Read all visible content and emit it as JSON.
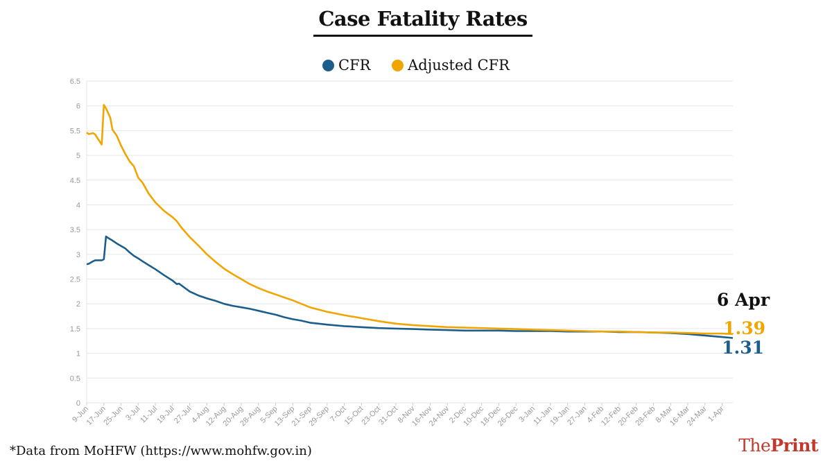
{
  "title": "Case Fatality Rates",
  "footnote": "*Data from MoHFW (https://www.mohfw.gov.in)",
  "brand": {
    "part1": "The",
    "part2": "Print"
  },
  "colors": {
    "cfr": "#1b5e8c",
    "adjusted": "#f0a500",
    "grid": "#e6e6e6",
    "axis_text": "#999999",
    "brand": "#c0392b"
  },
  "chart_data": {
    "type": "line",
    "title": "Case Fatality Rates",
    "xlabel": "",
    "ylabel": "",
    "ylim": [
      0,
      6.5
    ],
    "yticks": [
      0,
      0.5,
      1,
      1.5,
      2,
      2.5,
      3,
      3.5,
      4,
      4.5,
      5,
      5.5,
      6,
      6.5
    ],
    "yticks_labels": [
      "0",
      "0.5",
      "1",
      "1.5",
      "2",
      "2.5",
      "3",
      "3.5",
      "4",
      "4.5",
      "5",
      "5.5",
      "6",
      "6.5"
    ],
    "x_start": "9-Jun",
    "x_end": "6-Apr",
    "xticks": [
      "9-Jun",
      "17-Jun",
      "25-Jun",
      "3-Jul",
      "11-Jul",
      "19-Jul",
      "27-Jul",
      "4-Aug",
      "12-Aug",
      "20-Aug",
      "28-Aug",
      "5-Sep",
      "13-Sep",
      "21-Sep",
      "29-Sep",
      "7-Oct",
      "15-Oct",
      "23-Oct",
      "31-Oct",
      "8-Nov",
      "16-Nov",
      "24-Nov",
      "2-Dec",
      "10-Dec",
      "18-Dec",
      "26-Dec",
      "3-Jan",
      "11-Jan",
      "19-Jan",
      "27-Jan",
      "4-Feb",
      "12-Feb",
      "20-Feb",
      "28-Feb",
      "8-Mar",
      "16-Mar",
      "24-Mar",
      "1-Apr"
    ],
    "grid": true,
    "legend_position": "top-center",
    "end_label_date": "6 Apr",
    "series": [
      {
        "name": "CFR",
        "end_label": "1.31",
        "points": [
          [
            "9-Jun",
            2.8
          ],
          [
            "10-Jun",
            2.81
          ],
          [
            "12-Jun",
            2.86
          ],
          [
            "13-Jun",
            2.88
          ],
          [
            "16-Jun",
            2.88
          ],
          [
            "17-Jun",
            2.9
          ],
          [
            "18-Jun",
            3.36
          ],
          [
            "19-Jun",
            3.33
          ],
          [
            "21-Jun",
            3.28
          ],
          [
            "23-Jun",
            3.22
          ],
          [
            "25-Jun",
            3.17
          ],
          [
            "27-Jun",
            3.12
          ],
          [
            "29-Jun",
            3.04
          ],
          [
            "1-Jul",
            2.97
          ],
          [
            "3-Jul",
            2.92
          ],
          [
            "5-Jul",
            2.86
          ],
          [
            "8-Jul",
            2.78
          ],
          [
            "11-Jul",
            2.7
          ],
          [
            "15-Jul",
            2.58
          ],
          [
            "19-Jul",
            2.47
          ],
          [
            "21-Jul",
            2.4
          ],
          [
            "22-Jul",
            2.41
          ],
          [
            "27-Jul",
            2.25
          ],
          [
            "31-Jul",
            2.17
          ],
          [
            "4-Aug",
            2.11
          ],
          [
            "8-Aug",
            2.06
          ],
          [
            "12-Aug",
            2.0
          ],
          [
            "16-Aug",
            1.96
          ],
          [
            "20-Aug",
            1.93
          ],
          [
            "24-Aug",
            1.9
          ],
          [
            "28-Aug",
            1.86
          ],
          [
            "1-Sep",
            1.82
          ],
          [
            "5-Sep",
            1.78
          ],
          [
            "9-Sep",
            1.73
          ],
          [
            "13-Sep",
            1.69
          ],
          [
            "17-Sep",
            1.66
          ],
          [
            "21-Sep",
            1.62
          ],
          [
            "29-Sep",
            1.58
          ],
          [
            "7-Oct",
            1.55
          ],
          [
            "15-Oct",
            1.53
          ],
          [
            "23-Oct",
            1.51
          ],
          [
            "31-Oct",
            1.5
          ],
          [
            "8-Nov",
            1.49
          ],
          [
            "16-Nov",
            1.48
          ],
          [
            "24-Nov",
            1.47
          ],
          [
            "2-Dec",
            1.46
          ],
          [
            "10-Dec",
            1.46
          ],
          [
            "18-Dec",
            1.46
          ],
          [
            "26-Dec",
            1.45
          ],
          [
            "3-Jan",
            1.45
          ],
          [
            "11-Jan",
            1.45
          ],
          [
            "19-Jan",
            1.44
          ],
          [
            "27-Jan",
            1.44
          ],
          [
            "4-Feb",
            1.44
          ],
          [
            "12-Feb",
            1.43
          ],
          [
            "20-Feb",
            1.43
          ],
          [
            "28-Feb",
            1.42
          ],
          [
            "8-Mar",
            1.41
          ],
          [
            "16-Mar",
            1.39
          ],
          [
            "24-Mar",
            1.36
          ],
          [
            "1-Apr",
            1.33
          ],
          [
            "6-Apr",
            1.31
          ]
        ]
      },
      {
        "name": "Adjusted CFR",
        "end_label": "1.39",
        "points": [
          [
            "9-Jun",
            5.46
          ],
          [
            "10-Jun",
            5.43
          ],
          [
            "12-Jun",
            5.45
          ],
          [
            "13-Jun",
            5.42
          ],
          [
            "14-Jun",
            5.35
          ],
          [
            "16-Jun",
            5.22
          ],
          [
            "17-Jun",
            6.02
          ],
          [
            "18-Jun",
            5.95
          ],
          [
            "20-Jun",
            5.76
          ],
          [
            "21-Jun",
            5.52
          ],
          [
            "23-Jun",
            5.4
          ],
          [
            "25-Jun",
            5.2
          ],
          [
            "27-Jun",
            5.03
          ],
          [
            "29-Jun",
            4.88
          ],
          [
            "1-Jul",
            4.78
          ],
          [
            "3-Jul",
            4.55
          ],
          [
            "5-Jul",
            4.45
          ],
          [
            "8-Jul",
            4.22
          ],
          [
            "11-Jul",
            4.05
          ],
          [
            "15-Jul",
            3.88
          ],
          [
            "19-Jul",
            3.75
          ],
          [
            "21-Jul",
            3.67
          ],
          [
            "23-Jul",
            3.55
          ],
          [
            "27-Jul",
            3.35
          ],
          [
            "31-Jul",
            3.18
          ],
          [
            "4-Aug",
            3.0
          ],
          [
            "8-Aug",
            2.85
          ],
          [
            "12-Aug",
            2.71
          ],
          [
            "16-Aug",
            2.6
          ],
          [
            "20-Aug",
            2.5
          ],
          [
            "24-Aug",
            2.4
          ],
          [
            "28-Aug",
            2.32
          ],
          [
            "1-Sep",
            2.25
          ],
          [
            "5-Sep",
            2.19
          ],
          [
            "9-Sep",
            2.13
          ],
          [
            "13-Sep",
            2.07
          ],
          [
            "17-Sep",
            2.0
          ],
          [
            "21-Sep",
            1.93
          ],
          [
            "29-Sep",
            1.84
          ],
          [
            "7-Oct",
            1.77
          ],
          [
            "15-Oct",
            1.71
          ],
          [
            "23-Oct",
            1.65
          ],
          [
            "31-Oct",
            1.6
          ],
          [
            "8-Nov",
            1.57
          ],
          [
            "16-Nov",
            1.55
          ],
          [
            "24-Nov",
            1.53
          ],
          [
            "2-Dec",
            1.52
          ],
          [
            "10-Dec",
            1.51
          ],
          [
            "18-Dec",
            1.5
          ],
          [
            "26-Dec",
            1.49
          ],
          [
            "3-Jan",
            1.48
          ],
          [
            "11-Jan",
            1.47
          ],
          [
            "19-Jan",
            1.46
          ],
          [
            "27-Jan",
            1.45
          ],
          [
            "4-Feb",
            1.44
          ],
          [
            "12-Feb",
            1.44
          ],
          [
            "20-Feb",
            1.43
          ],
          [
            "28-Feb",
            1.42
          ],
          [
            "8-Mar",
            1.42
          ],
          [
            "16-Mar",
            1.41
          ],
          [
            "24-Mar",
            1.4
          ],
          [
            "1-Apr",
            1.4
          ],
          [
            "6-Apr",
            1.39
          ]
        ]
      }
    ]
  }
}
